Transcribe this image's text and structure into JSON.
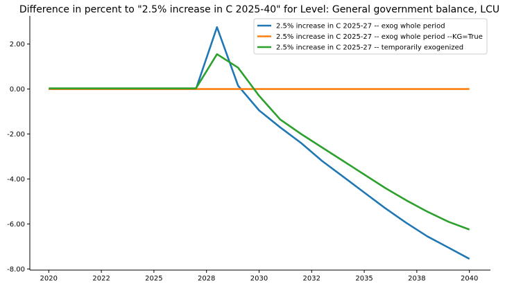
{
  "chart_data": {
    "type": "line",
    "title": "Difference in percent to \"2.5% increase in C 2025-40\" for Level: General government balance, LCU",
    "xlabel": "",
    "ylabel": "",
    "x": [
      2020,
      2021,
      2022,
      2023,
      2024,
      2025,
      2026,
      2027,
      2028,
      2029,
      2030,
      2031,
      2032,
      2033,
      2034,
      2035,
      2036,
      2037,
      2038,
      2039,
      2040
    ],
    "x_tick_labels": [
      "2020",
      "2022",
      "2025",
      "2028",
      "2030",
      "2032",
      "2035",
      "2038",
      "2040"
    ],
    "y_tick_labels": [
      "-8.00",
      "-6.00",
      "-4.00",
      "-2.00",
      "0.00",
      "2.00"
    ],
    "y_ticks": [
      -8,
      -6,
      -4,
      -2,
      0,
      2
    ],
    "xlim": [
      2019.1,
      2041.0
    ],
    "ylim": [
      -8.05,
      3.25
    ],
    "legend_position": "top-right",
    "grid": false,
    "series": [
      {
        "name": "2.5% increase in C 2025-27 -- exog whole period",
        "color": "#1f77b4",
        "values": [
          0,
          0,
          0,
          0,
          0,
          0,
          0,
          0,
          2.75,
          0.15,
          -0.95,
          -1.7,
          -2.4,
          -3.2,
          -3.9,
          -4.6,
          -5.3,
          -5.95,
          -6.55,
          -7.05,
          -7.55
        ]
      },
      {
        "name": "2.5% increase in C 2025-27 -- exog whole period --KG=True",
        "color": "#ff7f0e",
        "values": [
          0,
          0,
          0,
          0,
          0,
          0,
          0,
          0,
          0,
          0,
          0,
          0,
          0,
          0,
          0,
          0,
          0,
          0,
          0,
          0,
          0
        ]
      },
      {
        "name": "2.5% increase in C 2025-27 -- temporarily exogenized",
        "color": "#2ca02c",
        "values": [
          0.03,
          0.03,
          0.03,
          0.03,
          0.03,
          0.03,
          0.03,
          0.03,
          1.55,
          0.95,
          -0.3,
          -1.35,
          -2.0,
          -2.6,
          -3.2,
          -3.8,
          -4.4,
          -4.95,
          -5.45,
          -5.9,
          -6.25
        ]
      }
    ]
  }
}
